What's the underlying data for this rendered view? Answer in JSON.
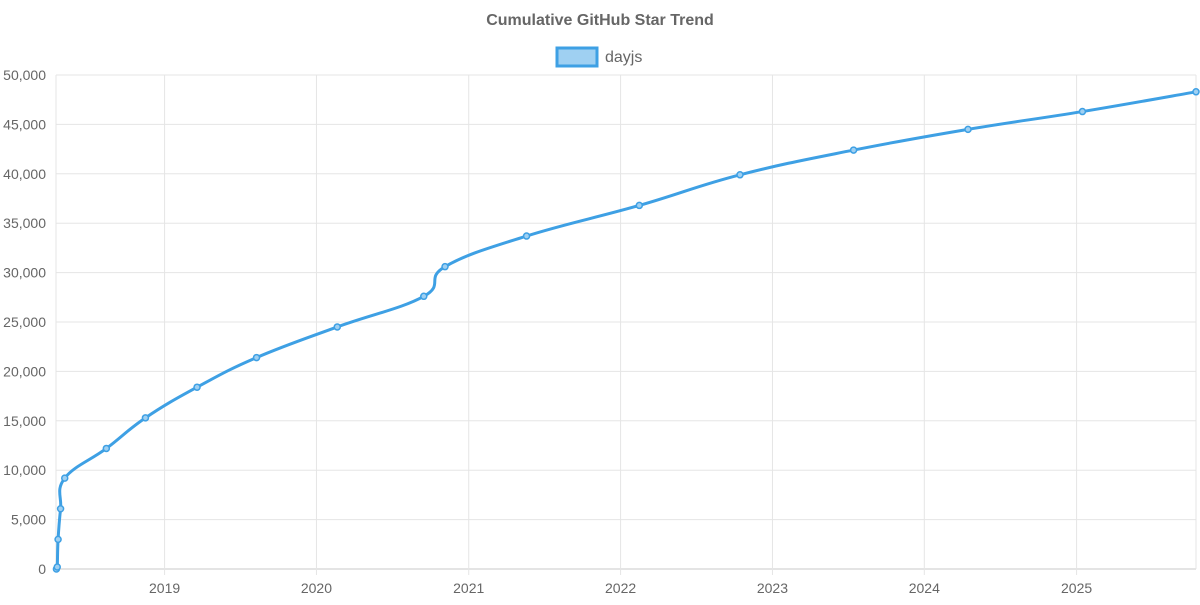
{
  "chart_data": {
    "type": "line",
    "title": "Cumulative GitHub Star Trend",
    "xlabel": "",
    "ylabel": "",
    "x_axis_type": "date",
    "xlim": [
      "2018-04-15",
      "2025-10-15"
    ],
    "ylim": [
      0,
      50000
    ],
    "y_ticks": [
      0,
      5000,
      10000,
      15000,
      20000,
      25000,
      30000,
      35000,
      40000,
      45000,
      50000
    ],
    "x_ticks": [
      "2019",
      "2020",
      "2021",
      "2022",
      "2023",
      "2024",
      "2025"
    ],
    "grid": true,
    "legend_position": "top-center",
    "series": [
      {
        "name": "dayjs",
        "color": "#3ea0e4",
        "fill_color": "#9fd0f2",
        "points": [
          {
            "x": "2018-04-16",
            "y": 0
          },
          {
            "x": "2018-04-18",
            "y": 200
          },
          {
            "x": "2018-04-20",
            "y": 3000
          },
          {
            "x": "2018-04-26",
            "y": 6100
          },
          {
            "x": "2018-05-06",
            "y": 9200
          },
          {
            "x": "2018-08-14",
            "y": 12200
          },
          {
            "x": "2018-11-16",
            "y": 15300
          },
          {
            "x": "2019-03-20",
            "y": 18400
          },
          {
            "x": "2019-08-10",
            "y": 21400
          },
          {
            "x": "2020-02-20",
            "y": 24500
          },
          {
            "x": "2020-09-15",
            "y": 27600
          },
          {
            "x": "2020-11-05",
            "y": 30600
          },
          {
            "x": "2021-05-20",
            "y": 33700
          },
          {
            "x": "2022-02-15",
            "y": 36800
          },
          {
            "x": "2022-10-15",
            "y": 39900
          },
          {
            "x": "2023-07-15",
            "y": 42400
          },
          {
            "x": "2024-04-15",
            "y": 44500
          },
          {
            "x": "2025-01-15",
            "y": 46300
          },
          {
            "x": "2025-10-15",
            "y": 48300
          }
        ]
      }
    ]
  }
}
